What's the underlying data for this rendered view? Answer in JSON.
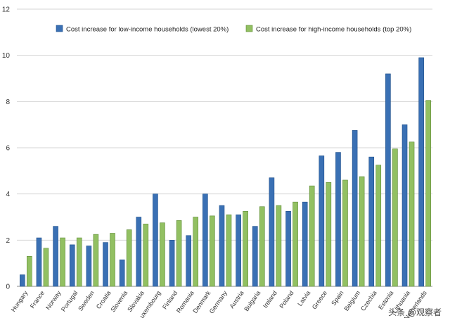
{
  "chart_data": {
    "type": "bar",
    "categories": [
      "Hungary",
      "France",
      "Norway",
      "Portugal",
      "Sweden",
      "Croatia",
      "Slovenia",
      "Slovakia",
      "Luxembourg",
      "Finland",
      "Romania",
      "Denmark",
      "Germany",
      "Austria",
      "Bulgaria",
      "Ireland",
      "Poland",
      "Latvia",
      "Greece",
      "Spain",
      "Belgium",
      "Czechia",
      "Estonia",
      "Lithuania",
      "Netherlands"
    ],
    "series": [
      {
        "name": "Cost increase for low-income households (lowest 20%)",
        "color": "#3a70b4",
        "stroke": "#1f4f8a",
        "values": [
          0.5,
          2.1,
          2.6,
          1.8,
          1.75,
          1.9,
          1.15,
          3.0,
          4.0,
          2.0,
          2.2,
          4.0,
          3.5,
          3.1,
          2.6,
          4.7,
          3.25,
          3.65,
          5.65,
          5.8,
          6.75,
          5.6,
          9.2,
          7.0,
          9.9
        ]
      },
      {
        "name": "Cost increase for high-income households (top 20%)",
        "color": "#92c062",
        "stroke": "#5f8a36",
        "values": [
          1.3,
          1.65,
          2.1,
          2.1,
          2.25,
          2.3,
          2.45,
          2.7,
          2.75,
          2.85,
          3.0,
          3.05,
          3.1,
          3.25,
          3.45,
          3.5,
          3.65,
          4.35,
          4.5,
          4.6,
          4.75,
          5.25,
          5.95,
          6.25,
          8.05
        ]
      }
    ],
    "title": "",
    "xlabel": "",
    "ylabel": "",
    "ylim": [
      0,
      12
    ],
    "yticks": [
      "0",
      "2",
      "4",
      "6",
      "8",
      "10",
      "12"
    ],
    "grid": true,
    "legend_position": "top-left"
  },
  "watermark": "头条 @观察者"
}
